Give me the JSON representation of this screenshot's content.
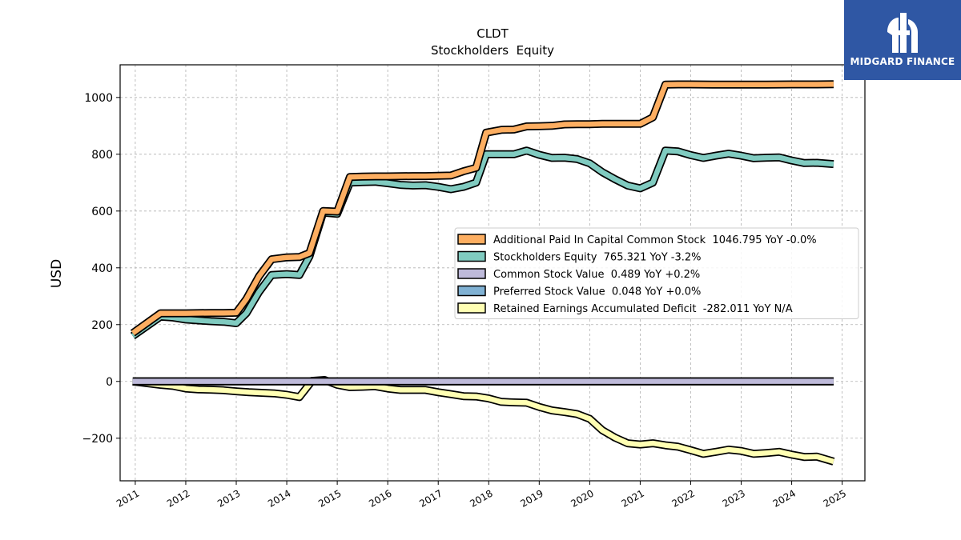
{
  "chart_data": {
    "type": "line",
    "title": "CLDT",
    "subtitle": "Stockholders  Equity",
    "ylabel": "USD",
    "ylim": [
      -350,
      1115
    ],
    "xlim": [
      2010.7,
      2025.45
    ],
    "yticks": [
      -200,
      0,
      200,
      400,
      600,
      800,
      1000
    ],
    "ytick_labels": [
      "−200",
      "0",
      "200",
      "400",
      "600",
      "800",
      "1000"
    ],
    "xticks": [
      2011,
      2012,
      2013,
      2014,
      2015,
      2016,
      2017,
      2018,
      2019,
      2020,
      2021,
      2022,
      2023,
      2024,
      2025
    ],
    "xtick_labels": [
      "2011",
      "2012",
      "2013",
      "2014",
      "2015",
      "2016",
      "2017",
      "2018",
      "2019",
      "2020",
      "2021",
      "2022",
      "2023",
      "2024",
      "2025"
    ],
    "grid": true,
    "legend_position": "center-right",
    "series": [
      {
        "name": "Additional Paid In Capital Common Stock  1046.795 YoY -0.0%",
        "color": "#fdae61",
        "x": [
          2010.95,
          2011.5,
          2011.75,
          2012.0,
          2012.5,
          2012.75,
          2013.0,
          2013.2,
          2013.45,
          2013.7,
          2014.0,
          2014.25,
          2014.45,
          2014.72,
          2015.0,
          2015.25,
          2015.5,
          2015.75,
          2016.0,
          2016.5,
          2016.75,
          2017.0,
          2017.25,
          2017.5,
          2017.75,
          2017.95,
          2018.25,
          2018.5,
          2018.75,
          2019.0,
          2019.25,
          2019.5,
          2019.75,
          2020.0,
          2020.25,
          2020.5,
          2020.75,
          2021.0,
          2021.25,
          2021.5,
          2021.75,
          2022.0,
          2022.5,
          2023.0,
          2023.5,
          2024.0,
          2024.5,
          2024.83
        ],
        "values": [
          170,
          240,
          240,
          240,
          241,
          241,
          242,
          290,
          370,
          430,
          437,
          438,
          452,
          600,
          598,
          720,
          721,
          722,
          722,
          723,
          723,
          724,
          725,
          740,
          752,
          876,
          886,
          887,
          898,
          899,
          900,
          905,
          906,
          906,
          907,
          907,
          907,
          907,
          930,
          1045,
          1046,
          1046,
          1045,
          1045,
          1045,
          1046,
          1046,
          1046.795
        ]
      },
      {
        "name": "Stockholders Equity  765.321 YoY -3.2%",
        "color": "#80cbc0",
        "x": [
          2010.95,
          2011.5,
          2011.75,
          2012.0,
          2012.5,
          2012.75,
          2013.0,
          2013.2,
          2013.45,
          2013.7,
          2014.0,
          2014.25,
          2014.45,
          2014.72,
          2015.0,
          2015.25,
          2015.5,
          2015.75,
          2016.0,
          2016.25,
          2016.5,
          2016.75,
          2017.0,
          2017.25,
          2017.5,
          2017.75,
          2017.95,
          2018.25,
          2018.5,
          2018.75,
          2019.0,
          2019.25,
          2019.5,
          2019.75,
          2020.0,
          2020.25,
          2020.5,
          2020.75,
          2021.0,
          2021.25,
          2021.5,
          2021.75,
          2022.0,
          2022.25,
          2022.5,
          2022.75,
          2023.0,
          2023.25,
          2023.5,
          2023.75,
          2024.0,
          2024.25,
          2024.5,
          2024.83
        ],
        "values": [
          160,
          228,
          225,
          218,
          212,
          210,
          205,
          240,
          315,
          375,
          378,
          375,
          440,
          595,
          590,
          700,
          702,
          703,
          698,
          692,
          690,
          691,
          685,
          677,
          685,
          700,
          800,
          800,
          800,
          813,
          798,
          787,
          788,
          783,
          768,
          737,
          712,
          690,
          680,
          700,
          813,
          810,
          797,
          787,
          795,
          802,
          795,
          786,
          788,
          789,
          778,
          769,
          770,
          765.321
        ]
      },
      {
        "name": "Common Stock Value  0.489 YoY +0.2%",
        "color": "#bebada",
        "x": [
          2010.95,
          2024.83
        ],
        "values": [
          0.5,
          0.489
        ]
      },
      {
        "name": "Preferred Stock Value  0.048 YoY +0.0%",
        "color": "#80b1d3",
        "x": [
          2010.95,
          2024.83
        ],
        "values": [
          0.048,
          0.048
        ]
      },
      {
        "name": "Retained Earnings Accumulated Deficit  -282.011 YoY N/A",
        "color": "#ffffb3",
        "x": [
          2010.95,
          2011.5,
          2011.75,
          2012.0,
          2012.25,
          2012.5,
          2012.75,
          2013.0,
          2013.25,
          2013.5,
          2013.75,
          2014.0,
          2014.25,
          2014.5,
          2014.75,
          2015.0,
          2015.25,
          2015.5,
          2015.75,
          2016.0,
          2016.25,
          2016.5,
          2016.75,
          2017.0,
          2017.25,
          2017.5,
          2017.75,
          2018.0,
          2018.25,
          2018.5,
          2018.75,
          2019.0,
          2019.25,
          2019.5,
          2019.75,
          2020.0,
          2020.25,
          2020.5,
          2020.75,
          2021.0,
          2021.25,
          2021.5,
          2021.75,
          2022.0,
          2022.25,
          2022.5,
          2022.75,
          2023.0,
          2023.25,
          2023.5,
          2023.75,
          2024.0,
          2024.25,
          2024.5,
          2024.83
        ],
        "values": [
          0,
          -12,
          -16,
          -25,
          -28,
          -29,
          -31,
          -35,
          -38,
          -40,
          -42,
          -47,
          -55,
          2,
          5,
          -12,
          -20,
          -19,
          -17,
          -25,
          -30,
          -30,
          -30,
          -38,
          -45,
          -52,
          -53,
          -60,
          -72,
          -74,
          -75,
          -90,
          -102,
          -108,
          -115,
          -132,
          -172,
          -198,
          -218,
          -222,
          -218,
          -225,
          -230,
          -242,
          -255,
          -248,
          -240,
          -245,
          -255,
          -252,
          -248,
          -258,
          -266,
          -265,
          -282.011
        ]
      }
    ]
  },
  "logo": {
    "text": "MIDGARD FINANCE",
    "color": "#2f57a4"
  }
}
